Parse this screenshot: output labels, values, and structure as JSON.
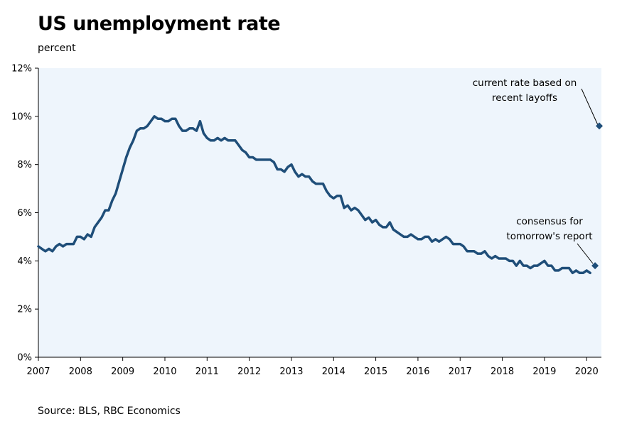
{
  "chart_data": {
    "type": "line",
    "title": "US unemployment rate",
    "ylabel": "percent",
    "xlabel": "",
    "source": "Source: BLS, RBC Economics",
    "xlim": [
      2007,
      2020.35
    ],
    "ylim": [
      0,
      12
    ],
    "y_ticks": [
      {
        "value": 0,
        "label": "0%"
      },
      {
        "value": 2,
        "label": "2%"
      },
      {
        "value": 4,
        "label": "4%"
      },
      {
        "value": 6,
        "label": "6%"
      },
      {
        "value": 8,
        "label": "8%"
      },
      {
        "value": 10,
        "label": "10%"
      },
      {
        "value": 12,
        "label": "12%"
      }
    ],
    "x_ticks": [
      {
        "value": 2007,
        "label": "2007"
      },
      {
        "value": 2008,
        "label": "2008"
      },
      {
        "value": 2009,
        "label": "2009"
      },
      {
        "value": 2010,
        "label": "2010"
      },
      {
        "value": 2011,
        "label": "2011"
      },
      {
        "value": 2012,
        "label": "2012"
      },
      {
        "value": 2013,
        "label": "2013"
      },
      {
        "value": 2014,
        "label": "2014"
      },
      {
        "value": 2015,
        "label": "2015"
      },
      {
        "value": 2016,
        "label": "2016"
      },
      {
        "value": 2017,
        "label": "2017"
      },
      {
        "value": 2018,
        "label": "2018"
      },
      {
        "value": 2019,
        "label": "2019"
      },
      {
        "value": 2020,
        "label": "2020"
      }
    ],
    "grid": false,
    "colors": {
      "line": "#1f4e79",
      "plot_background": "#eef5fc",
      "axis": "#000000"
    },
    "series": [
      {
        "name": "US unemployment rate",
        "start_year": 2007,
        "start_month": 1,
        "values": [
          4.6,
          4.5,
          4.4,
          4.5,
          4.4,
          4.6,
          4.7,
          4.6,
          4.7,
          4.7,
          4.7,
          5.0,
          5.0,
          4.9,
          5.1,
          5.0,
          5.4,
          5.6,
          5.8,
          6.1,
          6.1,
          6.5,
          6.8,
          7.3,
          7.8,
          8.3,
          8.7,
          9.0,
          9.4,
          9.5,
          9.5,
          9.6,
          9.8,
          10.0,
          9.9,
          9.9,
          9.8,
          9.8,
          9.9,
          9.9,
          9.6,
          9.4,
          9.4,
          9.5,
          9.5,
          9.4,
          9.8,
          9.3,
          9.1,
          9.0,
          9.0,
          9.1,
          9.0,
          9.1,
          9.0,
          9.0,
          9.0,
          8.8,
          8.6,
          8.5,
          8.3,
          8.3,
          8.2,
          8.2,
          8.2,
          8.2,
          8.2,
          8.1,
          7.8,
          7.8,
          7.7,
          7.9,
          8.0,
          7.7,
          7.5,
          7.6,
          7.5,
          7.5,
          7.3,
          7.2,
          7.2,
          7.2,
          6.9,
          6.7,
          6.6,
          6.7,
          6.7,
          6.2,
          6.3,
          6.1,
          6.2,
          6.1,
          5.9,
          5.7,
          5.8,
          5.6,
          5.7,
          5.5,
          5.4,
          5.4,
          5.6,
          5.3,
          5.2,
          5.1,
          5.0,
          5.0,
          5.1,
          5.0,
          4.9,
          4.9,
          5.0,
          5.0,
          4.8,
          4.9,
          4.8,
          4.9,
          5.0,
          4.9,
          4.7,
          4.7,
          4.7,
          4.6,
          4.4,
          4.4,
          4.4,
          4.3,
          4.3,
          4.4,
          4.2,
          4.1,
          4.2,
          4.1,
          4.1,
          4.1,
          4.0,
          4.0,
          3.8,
          4.0,
          3.8,
          3.8,
          3.7,
          3.8,
          3.8,
          3.9,
          4.0,
          3.8,
          3.8,
          3.6,
          3.6,
          3.7,
          3.7,
          3.7,
          3.5,
          3.6,
          3.5,
          3.5,
          3.6,
          3.5
        ]
      }
    ],
    "annotations": [
      {
        "name": "current-rate",
        "lines": [
          "current rate based on",
          "recent layoffs"
        ],
        "point": {
          "x": 2020.3,
          "y": 9.6
        }
      },
      {
        "name": "consensus",
        "lines": [
          "consensus for",
          "tomorrow's report"
        ],
        "point": {
          "x": 2020.2,
          "y": 3.8
        }
      }
    ]
  }
}
